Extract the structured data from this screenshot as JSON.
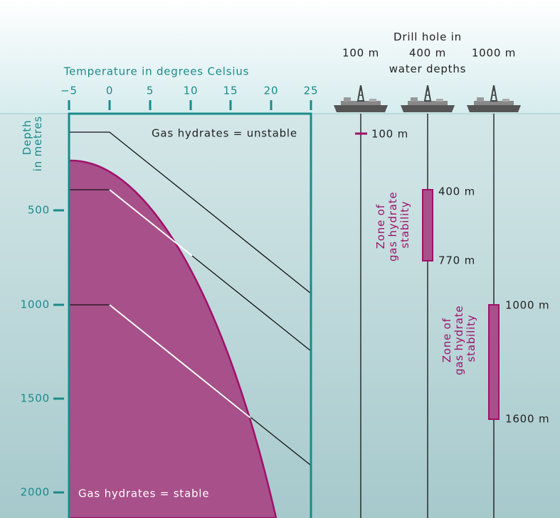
{
  "temperature_axis": {
    "title": "Temperature in degrees Celsius",
    "ticks": [
      "−5",
      "0",
      "5",
      "10",
      "15",
      "20",
      "25"
    ]
  },
  "depth_axis": {
    "title": [
      "Depth",
      "in metres"
    ],
    "ticks": [
      "500",
      "1000",
      "1500",
      "2000"
    ]
  },
  "regions": {
    "unstable": "Gas hydrates = unstable",
    "stable": "Gas hydrates = stable"
  },
  "drill_holes": {
    "title": [
      "Drill hole in",
      "water depths"
    ],
    "holes": [
      {
        "depth": "100 m",
        "marker": "100 m"
      },
      {
        "depth": "400 m",
        "zone_label": [
          "Zone of",
          "gas hydrate",
          "stability"
        ],
        "zone_top": "400 m",
        "zone_bottom": "770 m"
      },
      {
        "depth": "1000 m",
        "zone_label": [
          "Zone of",
          "gas hydrate",
          "stability"
        ],
        "zone_top": "1000 m",
        "zone_bottom": "1600 m"
      }
    ]
  }
}
